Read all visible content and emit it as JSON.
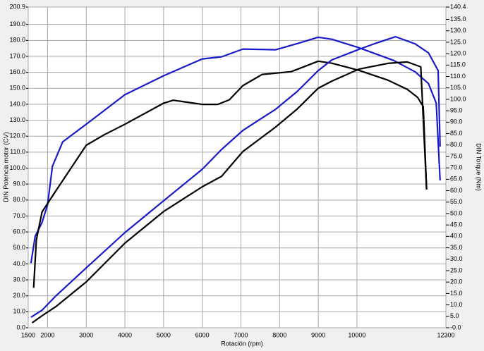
{
  "chart_data": {
    "type": "line",
    "xlabel": "Rotación (rpm)",
    "ylabel": "DIN Potencia motor (CV)",
    "y2label": "DIN Torque (Nm)",
    "xlim": [
      1500,
      12300
    ],
    "xticks": [
      1500,
      2000,
      3000,
      4000,
      5000,
      6000,
      7000,
      8000,
      9000,
      10000,
      12300
    ],
    "ylim": [
      0,
      200.9
    ],
    "yticks": [
      {
        "value": 0,
        "label": "0.0"
      },
      {
        "value": 10,
        "label": "10.0"
      },
      {
        "value": 20,
        "label": "20.0"
      },
      {
        "value": 30,
        "label": "30.0"
      },
      {
        "value": 40,
        "label": "40.0"
      },
      {
        "value": 50,
        "label": "50.0"
      },
      {
        "value": 60,
        "label": "60.0"
      },
      {
        "value": 70,
        "label": "70.0"
      },
      {
        "value": 80,
        "label": "80.0"
      },
      {
        "value": 90,
        "label": "90.0"
      },
      {
        "value": 100,
        "label": "100.0"
      },
      {
        "value": 110,
        "label": "110.0"
      },
      {
        "value": 120,
        "label": "120.0"
      },
      {
        "value": 130,
        "label": "130.0"
      },
      {
        "value": 140,
        "label": "140.0"
      },
      {
        "value": 150,
        "label": "150.0"
      },
      {
        "value": 160,
        "label": "160.0"
      },
      {
        "value": 170,
        "label": "170.0"
      },
      {
        "value": 180,
        "label": "180.0"
      },
      {
        "value": 190,
        "label": "190.0"
      },
      200.9
    ],
    "y2lim": [
      0,
      140.4
    ],
    "y2ticks": [
      {
        "value": 0,
        "label": "-0.0"
      },
      {
        "value": 5,
        "label": "5.0"
      },
      {
        "value": 10,
        "label": "10.0"
      },
      {
        "value": 15,
        "label": "15.0"
      },
      {
        "value": 20,
        "label": "20.0"
      },
      {
        "value": 25,
        "label": "25.0"
      },
      {
        "value": 30,
        "label": "30.0"
      },
      {
        "value": 35,
        "label": "35.0"
      },
      {
        "value": 40,
        "label": "40.0"
      },
      {
        "value": 45,
        "label": "45.0"
      },
      {
        "value": 50,
        "label": "50.0"
      },
      {
        "value": 55,
        "label": "55.0"
      },
      {
        "value": 60,
        "label": "60.0"
      },
      {
        "value": 65,
        "label": "65.0"
      },
      {
        "value": 70,
        "label": "70.0"
      },
      {
        "value": 75,
        "label": "75.0"
      },
      {
        "value": 80,
        "label": "80.0"
      },
      {
        "value": 85,
        "label": "85.0"
      },
      {
        "value": 90,
        "label": "90.0"
      },
      {
        "value": 95,
        "label": "95.0"
      },
      {
        "value": 100,
        "label": "100.0"
      },
      {
        "value": 105,
        "label": "105.0"
      },
      {
        "value": 110,
        "label": "110.0"
      },
      {
        "value": 115,
        "label": "115.0"
      },
      {
        "value": 120,
        "label": "120.0"
      },
      {
        "value": 125,
        "label": "125.0"
      },
      {
        "value": 130,
        "label": "130.0"
      },
      {
        "value": 135,
        "label": "135.0"
      },
      140.4
    ],
    "grid": true,
    "series": [
      {
        "color": "#1a1ac8",
        "axis": "y2",
        "x": [
          1571,
          1679,
          1857,
          2000,
          2125,
          2393,
          3000,
          4000,
          5000,
          6000,
          6500,
          7050,
          7900,
          8450,
          9000,
          9350,
          10050,
          10950,
          11500,
          11850,
          12050,
          12150
        ],
        "values": [
          28.3,
          40.0,
          46.1,
          53.8,
          70.7,
          81.4,
          89.1,
          102.0,
          110.3,
          117.7,
          118.6,
          122.0,
          121.7,
          124.4,
          127.2,
          126.3,
          122.6,
          117.0,
          112.1,
          106.9,
          98.3,
          64.5
        ]
      },
      {
        "color": "#000000",
        "axis": "y2",
        "x": [
          1640,
          1710,
          1857,
          2214,
          3000,
          3464,
          4000,
          5000,
          5250,
          6000,
          6400,
          6700,
          7050,
          7550,
          8300,
          9000,
          9350,
          10050,
          10800,
          11300,
          11571,
          11714,
          11800
        ],
        "values": [
          17.5,
          38.4,
          50.7,
          59.9,
          79.9,
          84.5,
          89.1,
          98.3,
          99.6,
          97.8,
          97.8,
          99.8,
          106.0,
          110.9,
          112.1,
          116.7,
          115.8,
          112.7,
          108.4,
          104.4,
          100.8,
          96.8,
          60.5
        ]
      },
      {
        "color": "#1a1ac8",
        "x": [
          1571,
          1857,
          2214,
          3000,
          4000,
          5000,
          6000,
          6500,
          7050,
          7900,
          8450,
          9000,
          9350,
          10050,
          10450,
          11000,
          11500,
          11850,
          12100,
          12150
        ],
        "values": [
          6.6,
          11.0,
          19.9,
          37.5,
          59.6,
          79.5,
          99.3,
          111.7,
          123.6,
          136.9,
          147.9,
          161.1,
          167.8,
          174.4,
          177.9,
          182.3,
          177.9,
          172.2,
          161.1,
          113.5
        ]
      },
      {
        "color": "#000000",
        "x": [
          1600,
          1857,
          2214,
          3000,
          4000,
          5000,
          6000,
          6500,
          7050,
          7900,
          8450,
          9000,
          9350,
          10050,
          10800,
          11300,
          11650,
          11800
        ],
        "values": [
          3.1,
          7.5,
          13.2,
          28.7,
          53.0,
          72.8,
          88.3,
          94.9,
          110.4,
          125.8,
          136.9,
          150.1,
          154.5,
          162.0,
          165.6,
          166.5,
          163.4,
          87.0
        ]
      }
    ]
  }
}
